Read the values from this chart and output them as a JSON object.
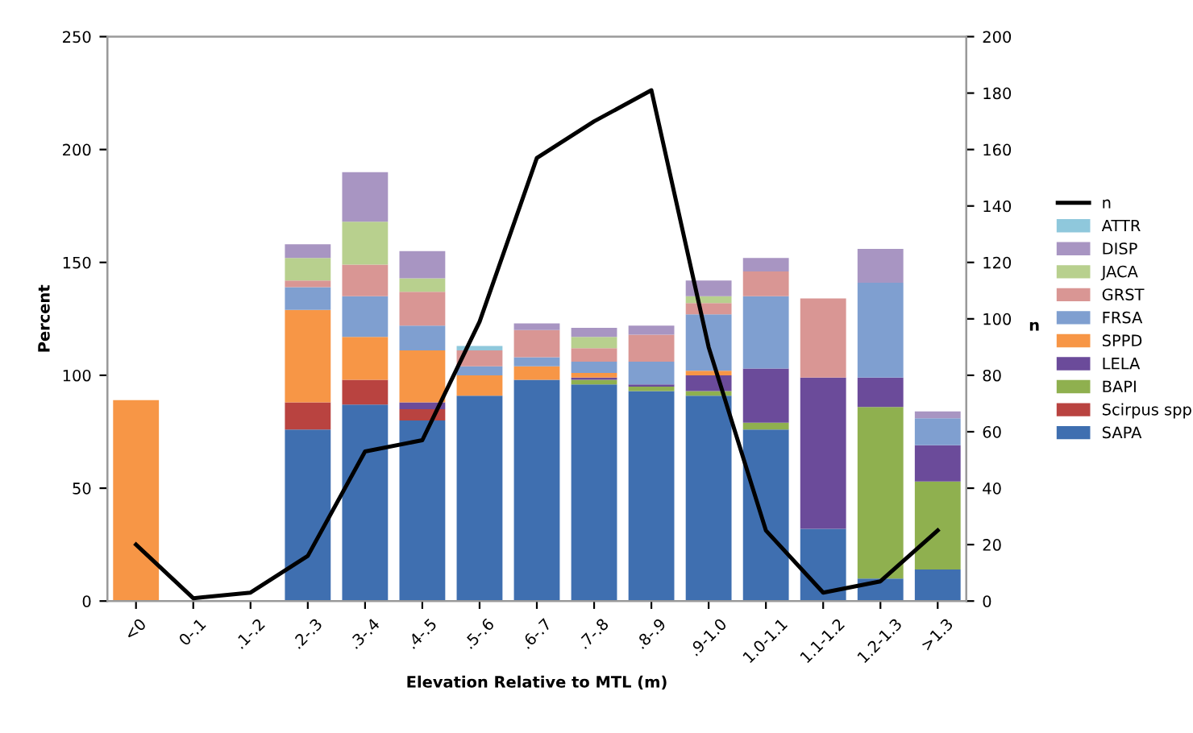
{
  "chart_data": {
    "type": "bar",
    "stacked": true,
    "xlabel": "Elevation Relative to MTL (m)",
    "ylabel": "Percent",
    "y2label": "n",
    "categories": [
      "<0",
      "0-.1",
      ".1-.2",
      ".2-.3",
      ".3-.4",
      ".4-.5",
      ".5-.6",
      ".6-.7",
      ".7-.8",
      ".8-.9",
      ".9-1.0",
      "1.0-1.1",
      "1.1-1.2",
      "1.2-1.3",
      ">1.3"
    ],
    "ylim": [
      0,
      250
    ],
    "yticks": [
      0,
      50,
      100,
      150,
      200,
      250
    ],
    "y2lim": [
      0,
      200
    ],
    "y2ticks": [
      0,
      20,
      40,
      60,
      80,
      100,
      120,
      140,
      160,
      180,
      200
    ],
    "grid": false,
    "legend": "right",
    "series": [
      {
        "name": "SAPA",
        "color": "#3f6fb0",
        "values": [
          0,
          0,
          0,
          76,
          87,
          80,
          91,
          98,
          96,
          93,
          91,
          76,
          32,
          10,
          14
        ]
      },
      {
        "name": "Scirpus spp",
        "color": "#b94340",
        "values": [
          0,
          0,
          0,
          12,
          11,
          5,
          0,
          0,
          0,
          0,
          0,
          0,
          0,
          0,
          0
        ]
      },
      {
        "name": "BAPI",
        "color": "#8fb04f",
        "values": [
          0,
          0,
          0,
          0,
          0,
          0,
          0,
          0,
          2,
          2,
          2,
          3,
          0,
          76,
          39
        ]
      },
      {
        "name": "LELA",
        "color": "#6b4b9a",
        "values": [
          0,
          0,
          0,
          0,
          0,
          3,
          0,
          0,
          1,
          1,
          7,
          24,
          67,
          13,
          16
        ]
      },
      {
        "name": "SPPD",
        "color": "#f79646",
        "values": [
          89,
          0,
          0,
          41,
          19,
          23,
          9,
          6,
          2,
          0,
          2,
          0,
          0,
          0,
          0
        ]
      },
      {
        "name": "FRSA",
        "color": "#7f9fd0",
        "values": [
          0,
          0,
          0,
          10,
          18,
          11,
          4,
          4,
          5,
          10,
          25,
          32,
          0,
          42,
          12
        ]
      },
      {
        "name": "GRST",
        "color": "#d99694",
        "values": [
          0,
          0,
          0,
          3,
          14,
          15,
          7,
          12,
          6,
          12,
          5,
          11,
          35,
          0,
          0
        ]
      },
      {
        "name": "JACA",
        "color": "#b8d08e",
        "values": [
          0,
          0,
          0,
          10,
          19,
          6,
          0,
          0,
          5,
          0,
          3,
          0,
          0,
          0,
          0
        ]
      },
      {
        "name": "DISP",
        "color": "#a895c2",
        "values": [
          0,
          0,
          0,
          6,
          22,
          12,
          0,
          3,
          4,
          4,
          7,
          6,
          0,
          15,
          3
        ]
      },
      {
        "name": "ATTR",
        "color": "#8fc8dc",
        "values": [
          0,
          0,
          0,
          0,
          0,
          0,
          2,
          0,
          0,
          0,
          0,
          0,
          0,
          0,
          0
        ]
      },
      {
        "name": "n",
        "type": "line",
        "axis": "y2",
        "color": "#000000",
        "marker": "none",
        "values": [
          20,
          1,
          3,
          16,
          53,
          57,
          99,
          157,
          170,
          181,
          90,
          25,
          3,
          7,
          25
        ]
      }
    ]
  }
}
